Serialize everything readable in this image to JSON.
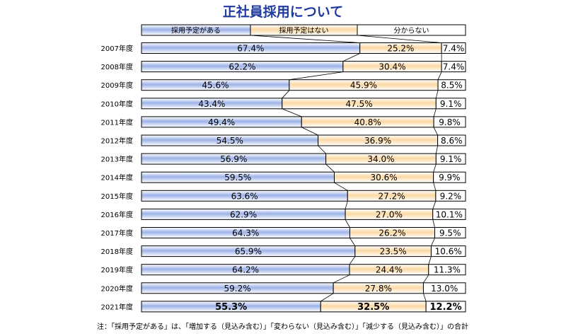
{
  "chart_data": {
    "type": "bar",
    "stacked": true,
    "orientation": "horizontal",
    "title": "正社員採用について",
    "categories": [
      "2007年度",
      "2008年度",
      "2009年度",
      "2010年度",
      "2011年度",
      "2012年度",
      "2013年度",
      "2014年度",
      "2015年度",
      "2016年度",
      "2017年度",
      "2018年度",
      "2019年度",
      "2020年度",
      "2021年度"
    ],
    "series": [
      {
        "name": "採用予定がある",
        "values": [
          67.4,
          62.2,
          45.6,
          43.4,
          49.4,
          54.5,
          56.9,
          59.5,
          63.6,
          62.9,
          64.3,
          65.9,
          64.2,
          59.2,
          55.3
        ],
        "color": "#9db2e8"
      },
      {
        "name": "採用予定はない",
        "values": [
          25.2,
          30.4,
          45.9,
          47.5,
          40.8,
          36.9,
          34.0,
          30.6,
          27.2,
          27.0,
          26.2,
          23.5,
          24.4,
          27.8,
          32.5
        ],
        "color": "#fbd8a4"
      },
      {
        "name": "分からない",
        "values": [
          7.4,
          7.4,
          8.5,
          9.1,
          9.8,
          8.6,
          9.1,
          9.9,
          9.2,
          10.1,
          9.5,
          10.6,
          11.3,
          13.0,
          12.2
        ],
        "color": "#ffffff"
      }
    ],
    "value_labels": [
      [
        "67.4%",
        "62.2%",
        "45.6%",
        "43.4%",
        "49.4%",
        "54.5%",
        "56.9%",
        "59.5%",
        "63.6%",
        "62.9%",
        "64.3%",
        "65.9%",
        "64.2%",
        "59.2%",
        "55.3%"
      ],
      [
        "25.2%",
        "30.4%",
        "45.9%",
        "47.5%",
        "40.8%",
        "36.9%",
        "34.0%",
        "30.6%",
        "27.2%",
        "27.0%",
        "26.2%",
        "23.5%",
        "24.4%",
        "27.8%",
        "32.5%"
      ],
      [
        "7.4%",
        "7.4%",
        "8.5%",
        "9.1%",
        "9.8%",
        "8.6%",
        "9.1%",
        "9.9%",
        "9.2%",
        "10.1%",
        "9.5%",
        "10.6%",
        "11.3%",
        "13.0%",
        "12.2%"
      ]
    ],
    "highlight_category": "2021年度",
    "xlim": [
      0,
      100
    ],
    "legend": "top",
    "connector_lines": true
  },
  "footnote": "注：「採用予定がある」は、「増加する（見込み含む）」「変わらない（見込み含む）」「減少する（見込み含む）」の合計"
}
